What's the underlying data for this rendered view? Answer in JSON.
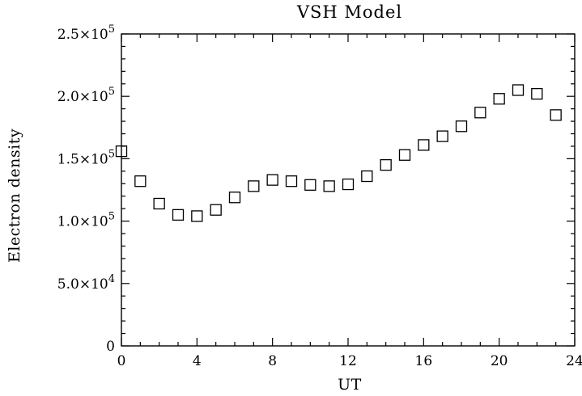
{
  "chart_data": {
    "type": "scatter",
    "title": "VSH Model",
    "xlabel": "UT",
    "ylabel": "Electron density",
    "xlim": [
      0,
      24
    ],
    "ylim": [
      0,
      250000
    ],
    "grid": false,
    "marker": "open-square",
    "x_ticks": [
      0,
      4,
      8,
      12,
      16,
      20,
      24
    ],
    "x_tick_labels": [
      "0",
      "4",
      "8",
      "12",
      "16",
      "20",
      "24"
    ],
    "y_ticks": [
      0,
      50000,
      100000,
      150000,
      200000,
      250000
    ],
    "y_tick_labels": [
      {
        "mantissa": "0",
        "exponent": ""
      },
      {
        "mantissa": "5.0×10",
        "exponent": "4"
      },
      {
        "mantissa": "1.0×10",
        "exponent": "5"
      },
      {
        "mantissa": "1.5×10",
        "exponent": "5"
      },
      {
        "mantissa": "2.0×10",
        "exponent": "5"
      },
      {
        "mantissa": "2.5×10",
        "exponent": "5"
      }
    ],
    "series": [
      {
        "x": [
          0,
          1,
          2,
          3,
          4,
          5,
          6,
          7,
          8,
          9,
          10,
          11,
          12,
          13,
          14,
          15,
          16,
          17,
          18,
          19,
          20,
          21,
          22,
          23
        ],
        "y": [
          156000,
          132000,
          114000,
          105000,
          104000,
          109000,
          119000,
          128000,
          133000,
          132000,
          129000,
          128000,
          129500,
          136000,
          145000,
          153000,
          161000,
          168000,
          176000,
          187000,
          198000,
          205000,
          202000,
          185000
        ]
      }
    ]
  }
}
